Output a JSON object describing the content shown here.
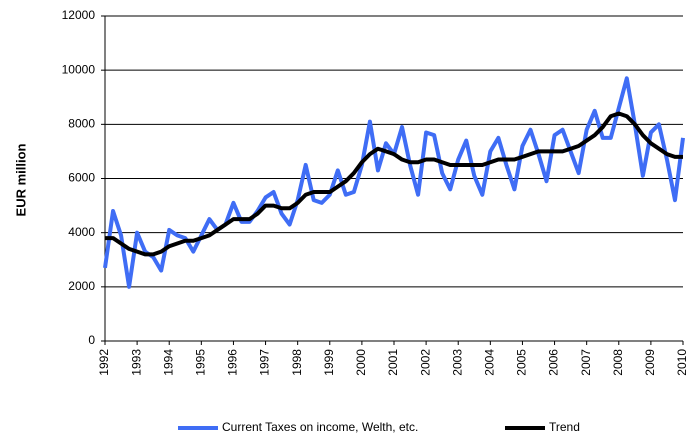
{
  "chart_data": {
    "type": "line",
    "ylabel": "EUR million",
    "x": [
      1992,
      1992.25,
      1992.5,
      1992.75,
      1993,
      1993.25,
      1993.5,
      1993.75,
      1994,
      1994.25,
      1994.5,
      1994.75,
      1995,
      1995.25,
      1995.5,
      1995.75,
      1996,
      1996.25,
      1996.5,
      1996.75,
      1997,
      1997.25,
      1997.5,
      1997.75,
      1998,
      1998.25,
      1998.5,
      1998.75,
      1999,
      1999.25,
      1999.5,
      1999.75,
      2000,
      2000.25,
      2000.5,
      2000.75,
      2001,
      2001.25,
      2001.5,
      2001.75,
      2002,
      2002.25,
      2002.5,
      2002.75,
      2003,
      2003.25,
      2003.5,
      2003.75,
      2004,
      2004.25,
      2004.5,
      2004.75,
      2005,
      2005.25,
      2005.5,
      2005.75,
      2006,
      2006.25,
      2006.5,
      2006.75,
      2007,
      2007.25,
      2007.5,
      2007.75,
      2008,
      2008.25,
      2008.5,
      2008.75,
      2009,
      2009.25,
      2009.5,
      2009.75,
      2010
    ],
    "series": [
      {
        "name": "Current Taxes on income, Welth, etc.",
        "color": "#3f6df5",
        "width": 4,
        "values": [
          2700,
          4800,
          3900,
          2000,
          4000,
          3300,
          3100,
          2600,
          4100,
          3900,
          3800,
          3300,
          3900,
          4500,
          4100,
          4300,
          5100,
          4400,
          4400,
          4800,
          5300,
          5500,
          4700,
          4300,
          5200,
          6500,
          5200,
          5100,
          5400,
          6300,
          5400,
          5500,
          6500,
          8100,
          6300,
          7300,
          6900,
          7900,
          6500,
          5400,
          7700,
          7600,
          6200,
          5600,
          6700,
          7400,
          6100,
          5400,
          7000,
          7500,
          6500,
          5600,
          7200,
          7800,
          6900,
          5900,
          7600,
          7800,
          7000,
          6200,
          7800,
          8500,
          7500,
          7500,
          8600,
          9700,
          8000,
          6100,
          7700,
          8000,
          6700,
          5200,
          7500
        ]
      },
      {
        "name": "Trend",
        "color": "#000000",
        "width": 4,
        "values": [
          3800,
          3800,
          3600,
          3400,
          3300,
          3200,
          3200,
          3300,
          3500,
          3600,
          3700,
          3700,
          3800,
          3900,
          4100,
          4300,
          4500,
          4500,
          4500,
          4700,
          5000,
          5000,
          4900,
          4900,
          5100,
          5400,
          5500,
          5500,
          5500,
          5700,
          5900,
          6200,
          6600,
          6900,
          7100,
          7000,
          6900,
          6700,
          6600,
          6600,
          6700,
          6700,
          6600,
          6500,
          6500,
          6500,
          6500,
          6500,
          6600,
          6700,
          6700,
          6700,
          6800,
          6900,
          7000,
          7000,
          7000,
          7000,
          7100,
          7200,
          7400,
          7600,
          7900,
          8300,
          8400,
          8300,
          8000,
          7600,
          7300,
          7100,
          6900,
          6800,
          6800
        ]
      }
    ],
    "xlim": [
      1992,
      2010
    ],
    "xticks": [
      1992,
      1993,
      1994,
      1995,
      1996,
      1997,
      1998,
      1999,
      2000,
      2001,
      2002,
      2003,
      2004,
      2005,
      2006,
      2007,
      2008,
      2009,
      2010
    ],
    "ylim": [
      0,
      12000
    ],
    "yticks": [
      0,
      2000,
      4000,
      6000,
      8000,
      10000,
      12000
    ],
    "grid": true,
    "legend": "bottom"
  }
}
